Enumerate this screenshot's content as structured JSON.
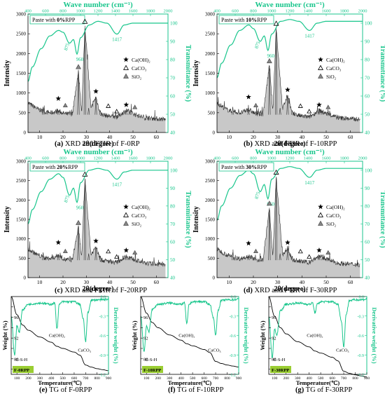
{
  "panels": [
    {
      "id": "a",
      "paste_prefix": "Paste with ",
      "paste_bold": "0%",
      "paste_suffix": "RPP",
      "caption_letter": "(a)",
      "caption_text": " XRD and FTIR of F-0RP",
      "ftir_labels": [
        "875",
        "960",
        "1417"
      ],
      "legend": {
        "caoh2": "Ca(OH)₂",
        "caco3": "CaCO₃",
        "sio2": "SiO₂"
      }
    },
    {
      "id": "b",
      "paste_prefix": "Paste with ",
      "paste_bold": "10%",
      "paste_suffix": "RPP",
      "caption_letter": "(b)",
      "caption_text": " XRD and FTIR of F-10RPP",
      "ftir_labels": [
        "875",
        "960",
        "1417"
      ],
      "legend": {
        "caoh2": "Ca(OH)₂",
        "caco3": "CaCO₃",
        "sio2": "SiO₂"
      }
    },
    {
      "id": "c",
      "paste_prefix": "Paste with ",
      "paste_bold": "20%",
      "paste_suffix": "RPP",
      "caption_letter": "(c)",
      "caption_text": " XRD and FTIR of F-20RPP",
      "ftir_labels": [
        "875",
        "960",
        "1417"
      ],
      "legend": {
        "caoh2": "Ca(OH)₂",
        "caco3": "CaCO₃",
        "sio2": "SiO₂"
      }
    },
    {
      "id": "d",
      "paste_prefix": "Paste with ",
      "paste_bold": "30%",
      "paste_suffix": "RPP",
      "caption_letter": "(d)",
      "caption_text": " XRD and FTIR of F-30RPP",
      "ftir_labels": [
        "875",
        "960",
        "1417"
      ],
      "legend": {
        "caoh2": "Ca(OH)₂",
        "caco3": "CaCO₃",
        "sio2": "SiO₂"
      }
    }
  ],
  "xrd_axes": {
    "x_label": "2θ(degree)",
    "y_label": "Intensity",
    "y2_label": "Transmittance (%)",
    "top_label": "Wave number (cm⁻¹)"
  },
  "tg_panels": [
    {
      "id": "e",
      "sample_label": "F-0RPP",
      "caption_letter": "(e)",
      "caption_text": " TG of F-0RPP",
      "labels": {
        "csh": "C-S-H",
        "caoh2": "Ca(OH)₂",
        "caco3": "CaCO₃"
      }
    },
    {
      "id": "f",
      "sample_label": "F-10RPP",
      "caption_letter": "(f)",
      "caption_text": " TG of F-10RPP",
      "labels": {
        "csh": "C-S-H",
        "caoh2": "Ca(OH)₂",
        "caco3": "CaCO₃"
      }
    },
    {
      "id": "g",
      "sample_label": "F-30RPP",
      "caption_letter": "(g)",
      "caption_text": " TG of F-30RPP",
      "labels": {
        "csh": "C-S-H",
        "caoh2": "Ca(OH)₂",
        "caco3": "CaCO₃"
      }
    }
  ],
  "tg_axes": {
    "x_label": "Temperature(℃)",
    "y_label": "Weight (%)",
    "y2_label": "Derivative weight (%)"
  },
  "colors": {
    "ftir": "#19c68c",
    "xrd_fill": "#c8c8c8",
    "xrd_line": "#333333",
    "tg_label_bg": "#9acd32",
    "axis2": "#19c68c"
  },
  "chart_data": [
    {
      "type": "line",
      "panel": "a",
      "series": [
        {
          "axis": "xrd",
          "x": [
            5,
            9,
            12,
            15,
            18,
            21,
            24,
            26.6,
            28,
            29.4,
            32,
            34.1,
            36,
            39.4,
            43,
            47.1,
            50.8,
            55,
            60,
            64
          ],
          "y": [
            750,
            600,
            520,
            500,
            540,
            470,
            470,
            1550,
            520,
            2700,
            600,
            900,
            470,
            420,
            390,
            560,
            460,
            370,
            350,
            330
          ]
        },
        {
          "axis": "ftir",
          "x": [
            400,
            450,
            550,
            650,
            750,
            800,
            875,
            920,
            960,
            1000,
            1100,
            1200,
            1300,
            1417,
            1500,
            1600,
            1700,
            1800,
            1900,
            2000
          ],
          "y": [
            68,
            76,
            86,
            93,
            96,
            95,
            89,
            91,
            83,
            92,
            99,
            101,
            100,
            94,
            99,
            100,
            100,
            100,
            100,
            100
          ]
        }
      ],
      "xlim": [
        5,
        65
      ],
      "ylim": [
        0,
        3000
      ],
      "x2lim": [
        400,
        2000
      ],
      "y2lim": [
        40,
        105
      ]
    },
    {
      "type": "line",
      "panel": "b",
      "series": [
        {
          "axis": "xrd",
          "x": [
            5,
            9,
            12,
            15,
            18,
            21,
            24,
            26.6,
            28,
            29.4,
            32,
            34.1,
            36,
            39.4,
            43,
            47.1,
            50.8,
            55,
            60,
            64
          ],
          "y": [
            750,
            580,
            520,
            500,
            580,
            470,
            470,
            1700,
            520,
            2650,
            600,
            940,
            470,
            420,
            390,
            560,
            460,
            370,
            350,
            330
          ]
        },
        {
          "axis": "ftir",
          "x": [
            400,
            450,
            550,
            650,
            750,
            800,
            875,
            920,
            960,
            1000,
            1100,
            1200,
            1300,
            1417,
            1500,
            1600,
            1700,
            1800,
            1900,
            2000
          ],
          "y": [
            70,
            78,
            88,
            96,
            99,
            97,
            90,
            93,
            85,
            94,
            101,
            102,
            101,
            96,
            100,
            101,
            101,
            101,
            101,
            101
          ]
        }
      ],
      "xlim": [
        5,
        65
      ],
      "ylim": [
        0,
        3000
      ],
      "x2lim": [
        400,
        2000
      ],
      "y2lim": [
        40,
        105
      ]
    },
    {
      "type": "line",
      "panel": "c",
      "series": [
        {
          "axis": "xrd",
          "x": [
            5,
            9,
            12,
            15,
            18,
            21,
            24,
            26.6,
            28,
            29.4,
            32,
            34.1,
            36,
            39.4,
            43,
            47.1,
            50.8,
            55,
            60,
            64
          ],
          "y": [
            740,
            590,
            510,
            490,
            580,
            460,
            460,
            1300,
            510,
            2550,
            590,
            800,
            460,
            420,
            390,
            560,
            460,
            370,
            350,
            330
          ]
        },
        {
          "axis": "ftir",
          "x": [
            400,
            450,
            550,
            650,
            750,
            800,
            875,
            920,
            960,
            1000,
            1100,
            1200,
            1300,
            1417,
            1500,
            1600,
            1700,
            1800,
            1900,
            2000
          ],
          "y": [
            70,
            78,
            88,
            95,
            98,
            96,
            86,
            90,
            82,
            93,
            100,
            101,
            100,
            95,
            99,
            100,
            100,
            100,
            100,
            100
          ]
        }
      ],
      "xlim": [
        5,
        65
      ],
      "ylim": [
        0,
        3000
      ],
      "x2lim": [
        400,
        2000
      ],
      "y2lim": [
        40,
        105
      ]
    },
    {
      "type": "line",
      "panel": "d",
      "series": [
        {
          "axis": "xrd",
          "x": [
            5,
            9,
            12,
            15,
            18,
            21,
            24,
            26.6,
            28,
            29.4,
            32,
            34.1,
            36,
            39.4,
            43,
            47.1,
            50.8,
            55,
            60,
            64
          ],
          "y": [
            730,
            590,
            510,
            490,
            560,
            460,
            460,
            1800,
            510,
            2600,
            580,
            760,
            460,
            420,
            390,
            560,
            460,
            370,
            350,
            330
          ]
        },
        {
          "axis": "ftir",
          "x": [
            400,
            450,
            550,
            650,
            750,
            800,
            875,
            920,
            960,
            1000,
            1100,
            1200,
            1300,
            1417,
            1500,
            1600,
            1700,
            1800,
            1900,
            2000
          ],
          "y": [
            72,
            80,
            90,
            97,
            100,
            98,
            88,
            92,
            84,
            95,
            101,
            102,
            101,
            96,
            100,
            101,
            101,
            101,
            101,
            101
          ]
        }
      ],
      "xlim": [
        5,
        65
      ],
      "ylim": [
        0,
        3000
      ],
      "x2lim": [
        400,
        2000
      ],
      "y2lim": [
        40,
        105
      ]
    },
    {
      "type": "line",
      "panel": "e",
      "series": [
        {
          "axis": "weight",
          "x": [
            50,
            100,
            150,
            200,
            300,
            400,
            450,
            500,
            600,
            650,
            700,
            750,
            800,
            850,
            900
          ],
          "y": [
            100,
            96.5,
            94.5,
            93.5,
            92.2,
            91.2,
            90.4,
            90,
            89.3,
            88.7,
            86.8,
            86.4,
            86.1,
            85.9,
            85.7
          ]
        },
        {
          "axis": "derivative",
          "x": [
            50,
            80,
            100,
            120,
            150,
            200,
            300,
            400,
            430,
            450,
            470,
            500,
            600,
            650,
            680,
            700,
            720,
            750,
            800,
            850,
            900
          ],
          "y": [
            -0.3,
            -0.9,
            -0.45,
            -0.55,
            -0.2,
            -0.12,
            -0.1,
            -0.12,
            -0.1,
            -0.5,
            -0.12,
            -0.08,
            -0.08,
            -0.12,
            -0.35,
            -0.7,
            -0.25,
            -0.06,
            -0.05,
            -0.05,
            -0.04
          ]
        }
      ],
      "xlim": [
        50,
        900
      ],
      "ylim": [
        85,
        100
      ],
      "y2lim": [
        -1.2,
        0
      ]
    },
    {
      "type": "line",
      "panel": "f",
      "series": [
        {
          "axis": "weight",
          "x": [
            50,
            100,
            150,
            200,
            300,
            400,
            450,
            500,
            600,
            650,
            700,
            750,
            800,
            850,
            900
          ],
          "y": [
            100,
            96.8,
            95,
            94,
            92.6,
            91.6,
            90.9,
            90.5,
            89.8,
            89.2,
            87.5,
            87.1,
            86.8,
            86.6,
            86.4
          ]
        },
        {
          "axis": "derivative",
          "x": [
            50,
            80,
            100,
            120,
            150,
            200,
            300,
            400,
            430,
            450,
            470,
            500,
            600,
            650,
            680,
            700,
            720,
            750,
            800,
            850,
            900
          ],
          "y": [
            -0.3,
            -0.85,
            -0.45,
            -0.55,
            -0.2,
            -0.12,
            -0.1,
            -0.12,
            -0.1,
            -0.42,
            -0.12,
            -0.08,
            -0.08,
            -0.12,
            -0.32,
            -0.6,
            -0.22,
            -0.06,
            -0.05,
            -0.05,
            -0.04
          ]
        }
      ],
      "xlim": [
        50,
        900
      ],
      "ylim": [
        85,
        100
      ],
      "y2lim": [
        -1.2,
        0
      ]
    },
    {
      "type": "line",
      "panel": "g",
      "series": [
        {
          "axis": "weight",
          "x": [
            50,
            100,
            150,
            200,
            300,
            400,
            450,
            500,
            600,
            650,
            700,
            750,
            800,
            850,
            900
          ],
          "y": [
            100,
            96.2,
            94,
            92.8,
            91.3,
            90.3,
            89.5,
            89.1,
            88.3,
            87.6,
            85.6,
            85.2,
            84.9,
            84.7,
            84.5
          ]
        },
        {
          "axis": "derivative",
          "x": [
            50,
            80,
            100,
            120,
            150,
            200,
            300,
            400,
            430,
            450,
            470,
            500,
            600,
            650,
            680,
            700,
            720,
            750,
            800,
            850,
            900
          ],
          "y": [
            -0.3,
            -0.95,
            -0.5,
            -0.6,
            -0.22,
            -0.12,
            -0.1,
            -0.12,
            -0.1,
            -0.25,
            -0.12,
            -0.08,
            -0.08,
            -0.12,
            -0.38,
            -0.78,
            -0.28,
            -0.06,
            -0.05,
            -0.05,
            -0.04
          ]
        }
      ],
      "xlim": [
        50,
        900
      ],
      "ylim": [
        85,
        100
      ],
      "y2lim": [
        -1.2,
        0
      ]
    }
  ]
}
